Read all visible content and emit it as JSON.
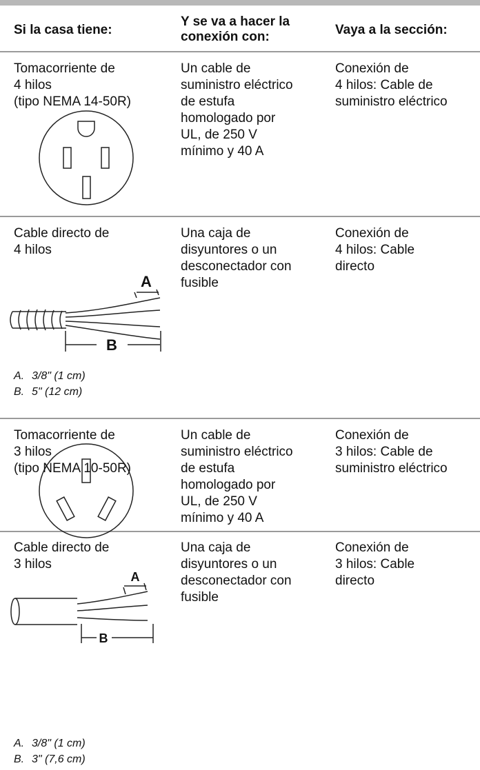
{
  "header": {
    "columns": [
      [
        "Si la casa tiene:"
      ],
      [
        "Y se va a hacer la",
        "conexión con:"
      ],
      [
        "Vaya a la sección:"
      ]
    ]
  },
  "rows": [
    {
      "cells": [
        [
          "Tomacorriente de",
          "4 hilos",
          "(tipo NEMA 14-50R)"
        ],
        [
          "Un cable de",
          "suministro eléctrico",
          "de estufa",
          "homologado por",
          "UL, de 250 V",
          "mínimo y 40 A"
        ],
        [
          "Conexión de",
          "4 hilos: Cable de",
          "suministro eléctrico"
        ]
      ]
    },
    {
      "cells": [
        [
          "Cable directo de",
          "4 hilos"
        ],
        [
          "Una caja de",
          "disyuntores o un",
          "desconectador con",
          "fusible"
        ],
        [
          "Conexión de",
          "4 hilos: Cable",
          "directo"
        ]
      ],
      "figure_labels": [
        "A",
        "B"
      ],
      "captions": [
        {
          "letter": "A.",
          "text": "3/8\" (1 cm)"
        },
        {
          "letter": "B.",
          "text": "5\" (12 cm)"
        }
      ]
    },
    {
      "cells": [
        [
          "Tomacorriente de",
          "3 hilos",
          "(tipo NEMA 10-50R)"
        ],
        [
          "Un cable de",
          "suministro eléctrico",
          "de estufa",
          "homologado por",
          "UL, de 250 V",
          "mínimo y 40 A"
        ],
        [
          "Conexión de",
          "3 hilos: Cable de",
          "suministro eléctrico"
        ]
      ]
    },
    {
      "cells": [
        [
          "Cable directo de",
          "3 hilos"
        ],
        [
          "Una caja de",
          "disyuntores o un",
          "desconectador con",
          "fusible"
        ],
        [
          "Conexión de",
          "3 hilos: Cable",
          "directo"
        ]
      ],
      "figure_labels": [
        "A",
        "B"
      ],
      "captions": [
        {
          "letter": "A.",
          "text": "3/8\" (1 cm)"
        },
        {
          "letter": "B.",
          "text": "3\" (7,6 cm)"
        }
      ]
    }
  ]
}
